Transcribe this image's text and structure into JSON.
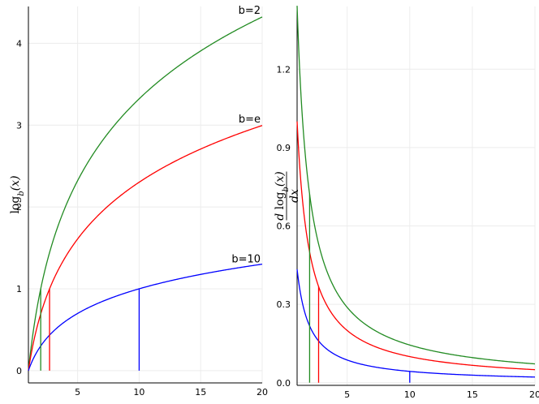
{
  "chart_data": [
    {
      "type": "line",
      "ylabel": "log_b(x)",
      "xlim": [
        1,
        20
      ],
      "ylim": [
        -0.15,
        4.45
      ],
      "xticks": [
        5,
        10,
        15,
        20
      ],
      "yticks": [
        0,
        1,
        2,
        3,
        4
      ],
      "grid": true,
      "legend": "none",
      "series": [
        {
          "name": "b=2",
          "base": 2,
          "color": "#228b22",
          "x": [
            1,
            2,
            3,
            4,
            5,
            7.5,
            10,
            12.5,
            15,
            17.5,
            20
          ],
          "values": [
            0,
            1,
            1.585,
            2,
            2.322,
            2.907,
            3.322,
            3.644,
            3.907,
            4.129,
            4.322
          ]
        },
        {
          "name": "b=e",
          "base": 2.718281828,
          "color": "#ff0000",
          "x": [
            1,
            2,
            3,
            4,
            5,
            7.5,
            10,
            12.5,
            15,
            17.5,
            20
          ],
          "values": [
            0,
            0.693,
            1.099,
            1.386,
            1.609,
            2.015,
            2.303,
            2.526,
            2.708,
            2.862,
            2.996
          ]
        },
        {
          "name": "b=10",
          "base": 10,
          "color": "#0000ff",
          "x": [
            1,
            2,
            3,
            4,
            5,
            7.5,
            10,
            12.5,
            15,
            17.5,
            20
          ],
          "values": [
            0,
            0.301,
            0.477,
            0.602,
            0.699,
            0.875,
            1,
            1.097,
            1.176,
            1.243,
            1.301
          ]
        }
      ],
      "annotations": [
        {
          "text": "b=2",
          "x": 20,
          "y": 4.4,
          "series": "b=2"
        },
        {
          "text": "b=e",
          "x": 20,
          "y": 3.07,
          "series": "b=e"
        },
        {
          "text": "b=10",
          "x": 20,
          "y": 1.36,
          "series": "b=10"
        }
      ],
      "vertical_markers": [
        {
          "x": 2,
          "y": 1,
          "color": "#228b22"
        },
        {
          "x": 2.718281828,
          "y": 1,
          "color": "#ff0000"
        },
        {
          "x": 10,
          "y": 1,
          "color": "#0000ff"
        }
      ]
    },
    {
      "type": "line",
      "ylabel": "d log_b(x) / dx",
      "xlim": [
        1,
        20
      ],
      "ylim": [
        -0.01,
        1.44
      ],
      "xticks": [
        5,
        10,
        15,
        20
      ],
      "yticks": [
        0.0,
        0.3,
        0.6,
        0.9,
        1.2
      ],
      "ytick_labels": [
        "0.0",
        "0.3",
        "0.6",
        "0.9",
        "1.2"
      ],
      "grid": true,
      "legend": "none",
      "series": [
        {
          "name": "b=2",
          "base": 2,
          "color": "#228b22",
          "x": [
            1,
            2,
            3,
            4,
            5,
            7.5,
            10,
            12.5,
            15,
            17.5,
            20
          ],
          "values": [
            1.443,
            0.721,
            0.481,
            0.361,
            0.289,
            0.192,
            0.144,
            0.115,
            0.096,
            0.082,
            0.072
          ]
        },
        {
          "name": "b=e",
          "base": 2.718281828,
          "color": "#ff0000",
          "x": [
            1,
            2,
            3,
            4,
            5,
            7.5,
            10,
            12.5,
            15,
            17.5,
            20
          ],
          "values": [
            1,
            0.5,
            0.333,
            0.25,
            0.2,
            0.133,
            0.1,
            0.08,
            0.067,
            0.057,
            0.05
          ]
        },
        {
          "name": "b=10",
          "base": 10,
          "color": "#0000ff",
          "x": [
            1,
            2,
            3,
            4,
            5,
            7.5,
            10,
            12.5,
            15,
            17.5,
            20
          ],
          "values": [
            0.434,
            0.217,
            0.145,
            0.109,
            0.087,
            0.058,
            0.043,
            0.035,
            0.029,
            0.025,
            0.022
          ]
        }
      ],
      "vertical_markers": [
        {
          "x": 2,
          "y": 0.721,
          "color": "#228b22"
        },
        {
          "x": 2.718281828,
          "y": 0.368,
          "color": "#ff0000"
        },
        {
          "x": 10,
          "y": 0.043,
          "color": "#0000ff"
        }
      ]
    }
  ]
}
